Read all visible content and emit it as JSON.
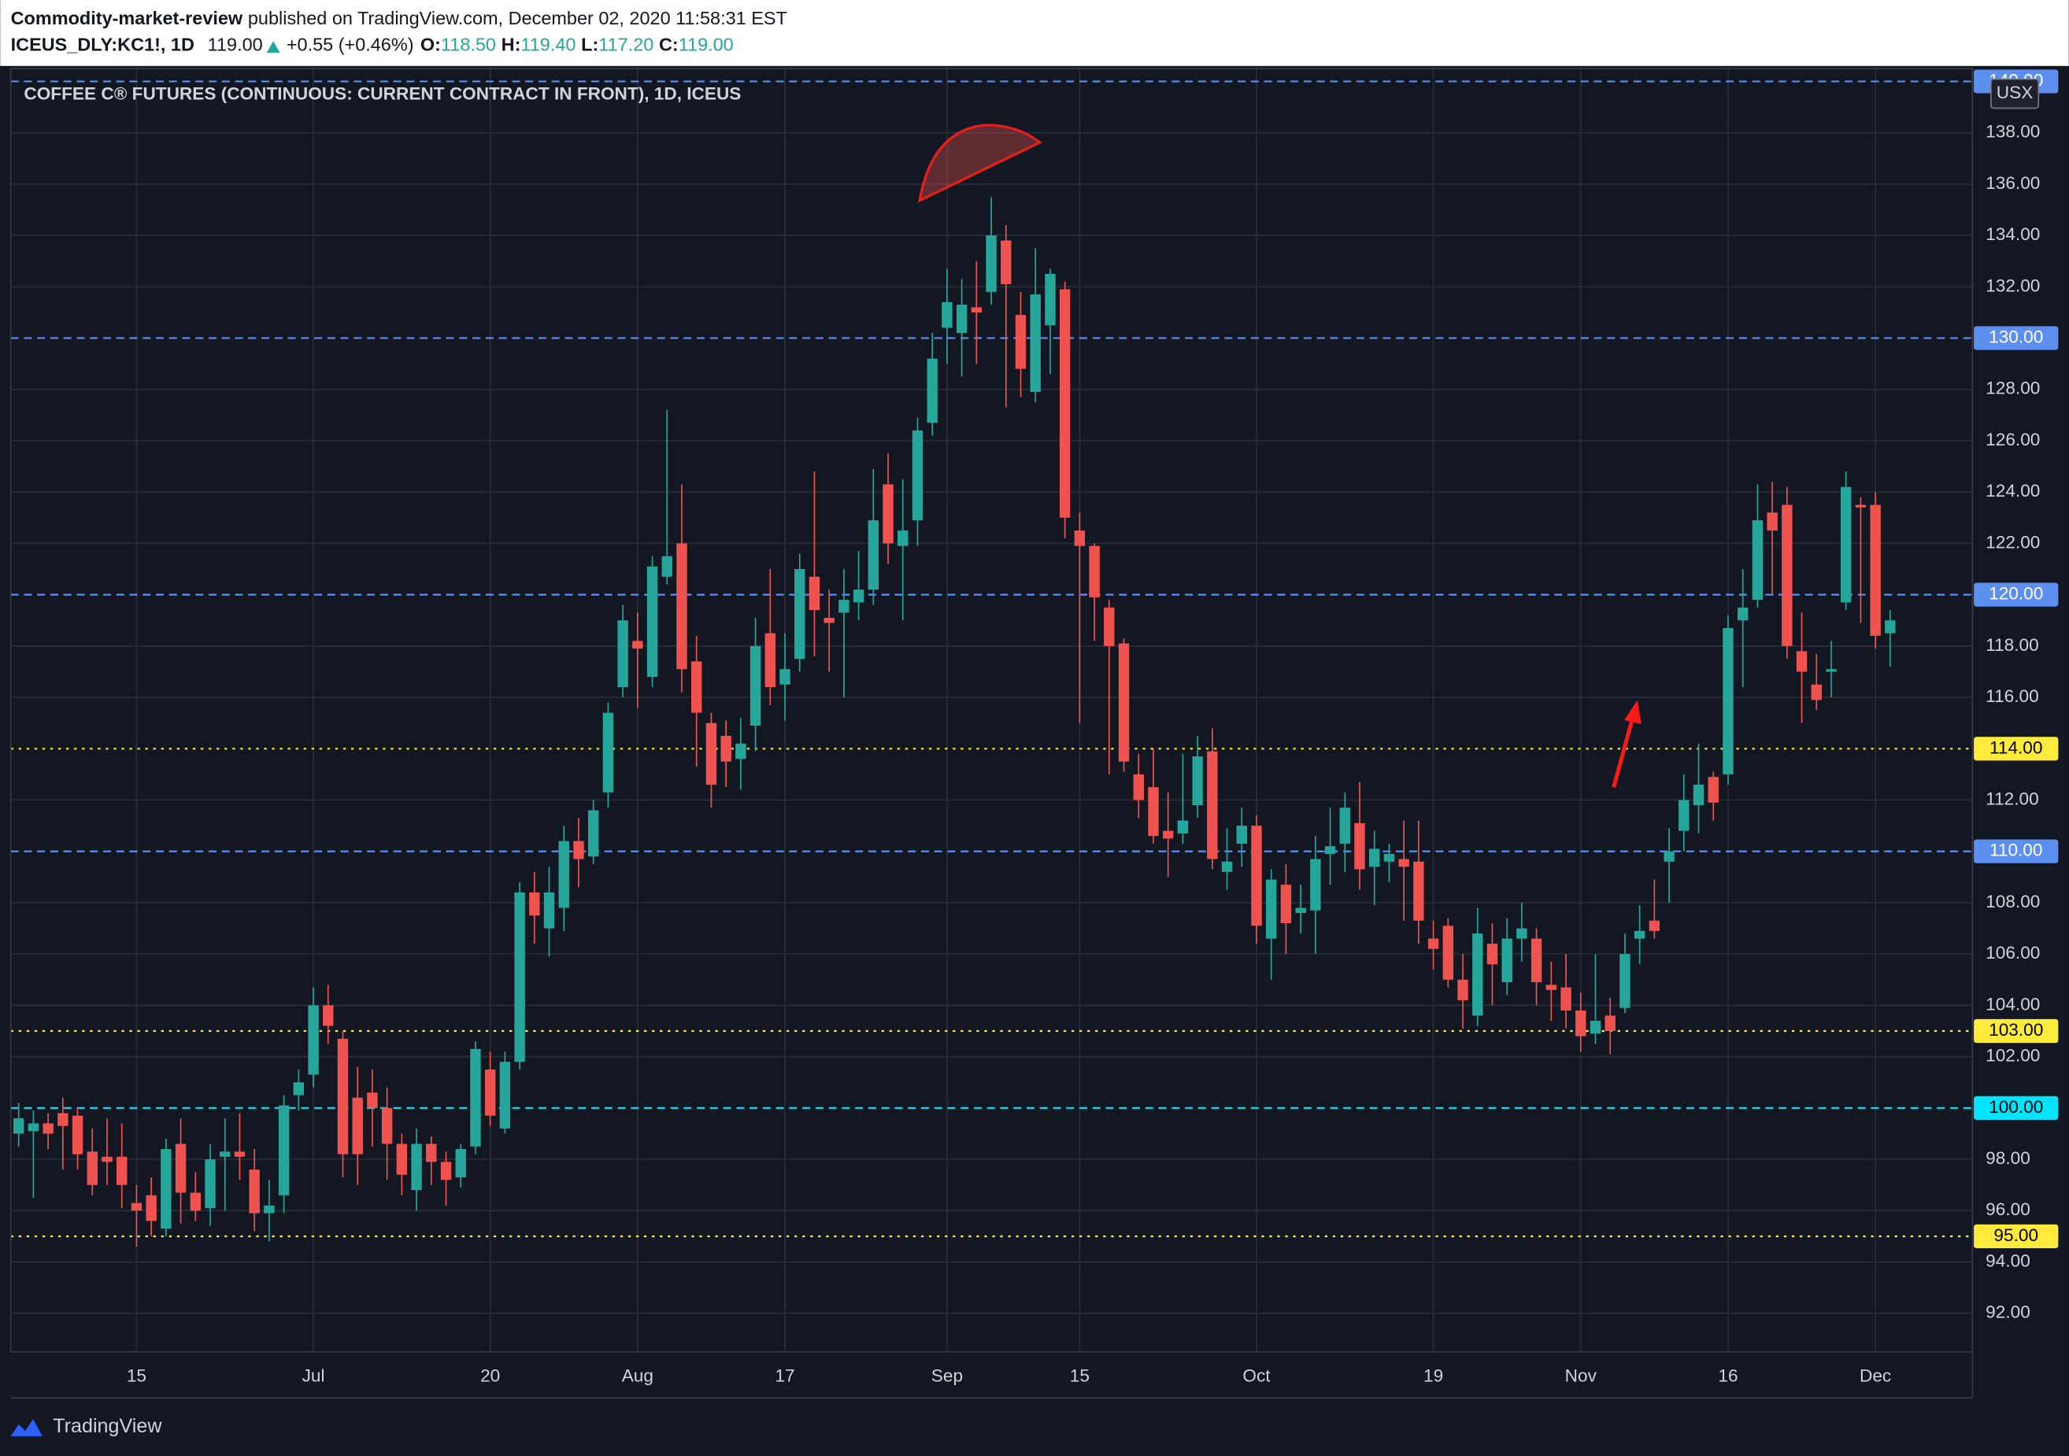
{
  "header": {
    "publisher": "Commodity-market-review",
    "published": "published on TradingView.com, December 02, 2020 11:58:31 EST",
    "symbol": "ICEUS_DLY:KC1!, 1D",
    "last": "119.00",
    "change": "+0.55 (+0.46%)",
    "o_label": "O:",
    "o": "118.50",
    "h_label": "H:",
    "h": "119.40",
    "l_label": "L:",
    "l": "117.20",
    "c_label": "C:",
    "c": "119.00"
  },
  "chart_data": {
    "type": "candlestick",
    "title": "COFFEE C® FUTURES (CONTINUOUS: CURRENT CONTRACT IN FRONT), 1D, ICEUS",
    "currency": "USX",
    "categories": [
      null,
      null,
      null,
      null,
      null,
      null,
      null,
      null,
      "15",
      null,
      null,
      null,
      null,
      null,
      null,
      null,
      null,
      null,
      null,
      null,
      "Jul",
      null,
      null,
      null,
      null,
      null,
      null,
      null,
      null,
      null,
      null,
      null,
      "20",
      null,
      null,
      null,
      null,
      null,
      null,
      null,
      null,
      null,
      "Aug",
      null,
      null,
      null,
      null,
      null,
      null,
      null,
      null,
      null,
      "17",
      null,
      null,
      null,
      null,
      null,
      null,
      null,
      null,
      null,
      null,
      "Sep",
      null,
      null,
      null,
      null,
      null,
      null,
      null,
      null,
      "15",
      null,
      null,
      null,
      null,
      null,
      null,
      null,
      null,
      null,
      null,
      null,
      "Oct",
      null,
      null,
      null,
      null,
      null,
      null,
      null,
      null,
      null,
      null,
      null,
      "19",
      null,
      null,
      null,
      null,
      null,
      null,
      null,
      null,
      null,
      "Nov",
      null,
      null,
      null,
      null,
      null,
      null,
      null,
      null,
      null,
      "16",
      null,
      null,
      null,
      null,
      null,
      null,
      null,
      null,
      null,
      "Dec",
      null
    ],
    "open": [
      99.0,
      99.1,
      99.4,
      99.8,
      99.7,
      98.3,
      98.1,
      98.1,
      96.3,
      96.6,
      95.3,
      98.6,
      96.7,
      96.1,
      98.1,
      98.3,
      97.6,
      95.9,
      96.6,
      100.5,
      101.3,
      104.0,
      102.7,
      100.4,
      100.6,
      100.0,
      98.6,
      96.8,
      98.6,
      97.9,
      97.3,
      98.5,
      101.5,
      99.2,
      101.8,
      108.4,
      107.0,
      107.8,
      110.4,
      109.8,
      112.3,
      116.4,
      118.2,
      116.8,
      120.7,
      122.0,
      117.4,
      115.0,
      114.5,
      113.6,
      114.9,
      118.5,
      116.5,
      117.5,
      120.7,
      119.1,
      119.3,
      119.7,
      120.2,
      124.3,
      121.9,
      122.9,
      126.7,
      130.4,
      130.2,
      131.2,
      131.8,
      133.8,
      130.9,
      127.9,
      130.5,
      131.9,
      122.5,
      121.9,
      119.5,
      118.1,
      113.0,
      112.5,
      110.8,
      110.7,
      111.8,
      113.9,
      109.2,
      110.3,
      111.0,
      106.6,
      108.7,
      107.6,
      107.7,
      109.9,
      110.3,
      111.1,
      109.4,
      109.6,
      109.7,
      109.6,
      106.6,
      107.1,
      105.0,
      103.6,
      106.4,
      104.9,
      106.6,
      106.6,
      104.8,
      104.7,
      103.8,
      102.9,
      103.6,
      103.9,
      106.6,
      107.3,
      109.6,
      110.8,
      111.8,
      112.9,
      113.0,
      119.0,
      119.8,
      123.2,
      123.5,
      117.8,
      116.5,
      117.0,
      119.7,
      123.5,
      123.5,
      118.5
    ],
    "high": [
      100.2,
      99.9,
      99.8,
      100.4,
      100.0,
      99.2,
      99.6,
      99.4,
      97.0,
      97.3,
      98.8,
      99.6,
      97.5,
      98.6,
      99.6,
      99.8,
      98.4,
      97.2,
      100.5,
      101.5,
      104.7,
      104.8,
      103.0,
      101.6,
      101.5,
      100.8,
      99.0,
      99.2,
      98.9,
      98.3,
      98.6,
      102.6,
      102.2,
      102.2,
      108.8,
      109.2,
      109.4,
      111.0,
      111.3,
      112.0,
      115.8,
      119.6,
      119.3,
      121.5,
      127.2,
      124.3,
      118.4,
      115.4,
      115.1,
      115.2,
      119.1,
      121.0,
      118.5,
      121.6,
      124.8,
      120.2,
      121.0,
      121.7,
      124.9,
      125.5,
      124.5,
      126.9,
      130.2,
      132.7,
      132.3,
      133.0,
      135.5,
      134.4,
      131.8,
      133.5,
      132.7,
      132.2,
      123.2,
      122.0,
      119.8,
      118.3,
      113.8,
      114.0,
      112.3,
      113.8,
      114.5,
      114.8,
      110.9,
      111.7,
      111.4,
      109.3,
      109.5,
      108.7,
      110.6,
      111.7,
      112.3,
      112.7,
      110.8,
      110.3,
      111.2,
      111.2,
      107.3,
      107.4,
      106.0,
      107.8,
      107.2,
      107.4,
      108.0,
      107.0,
      105.7,
      106.0,
      104.5,
      106.0,
      104.3,
      106.8,
      107.9,
      108.9,
      110.9,
      113.0,
      114.2,
      113.1,
      119.2,
      121.0,
      124.3,
      124.4,
      124.2,
      119.3,
      117.7,
      118.2,
      124.8,
      123.8,
      124.0,
      119.4
    ],
    "low": [
      98.5,
      96.5,
      98.4,
      97.6,
      97.6,
      96.6,
      97.0,
      96.1,
      94.6,
      95.0,
      95.0,
      95.5,
      95.6,
      95.4,
      96.0,
      97.2,
      95.2,
      94.8,
      95.9,
      99.9,
      100.8,
      102.5,
      97.3,
      97.0,
      98.5,
      97.2,
      96.6,
      96.0,
      97.0,
      96.2,
      96.9,
      98.2,
      99.3,
      99.0,
      101.5,
      106.4,
      105.9,
      106.9,
      108.6,
      109.5,
      111.7,
      116.0,
      115.6,
      116.4,
      120.4,
      116.2,
      113.3,
      111.7,
      112.5,
      112.4,
      113.9,
      115.7,
      115.1,
      117.0,
      117.6,
      117.0,
      116.0,
      119.0,
      119.6,
      121.2,
      119.0,
      121.9,
      126.2,
      129.0,
      128.5,
      129.0,
      131.3,
      127.3,
      127.7,
      127.5,
      128.6,
      122.2,
      115.0,
      118.2,
      113.0,
      113.1,
      111.3,
      110.3,
      109.0,
      110.3,
      111.3,
      109.3,
      108.5,
      109.4,
      106.4,
      105.0,
      106.0,
      106.8,
      106.0,
      108.7,
      109.2,
      108.5,
      107.9,
      108.8,
      107.3,
      106.4,
      105.4,
      104.7,
      103.1,
      103.2,
      104.0,
      104.4,
      105.7,
      104.0,
      103.4,
      103.1,
      102.2,
      102.5,
      102.1,
      103.7,
      105.6,
      106.6,
      108.0,
      110.0,
      110.7,
      111.2,
      112.6,
      116.4,
      119.5,
      120.0,
      117.5,
      115.0,
      115.5,
      116.0,
      119.4,
      118.9,
      117.9,
      117.2
    ],
    "close": [
      99.6,
      99.4,
      99.0,
      99.3,
      98.2,
      97.0,
      97.9,
      97.0,
      96.0,
      95.6,
      98.4,
      96.7,
      96.0,
      98.0,
      98.3,
      98.1,
      95.9,
      96.2,
      100.1,
      101.0,
      104.0,
      103.2,
      98.2,
      98.2,
      100.0,
      98.6,
      97.4,
      98.6,
      97.9,
      97.2,
      98.4,
      102.3,
      99.7,
      101.8,
      108.4,
      107.5,
      108.4,
      110.4,
      109.7,
      111.6,
      115.4,
      119.0,
      117.9,
      121.1,
      121.5,
      117.1,
      115.4,
      112.6,
      113.5,
      114.2,
      118.0,
      116.4,
      117.1,
      121.0,
      119.4,
      118.9,
      119.8,
      120.2,
      122.9,
      122.0,
      122.5,
      126.4,
      129.2,
      131.4,
      131.3,
      131.0,
      134.0,
      132.1,
      128.8,
      131.7,
      132.5,
      123.0,
      121.9,
      119.9,
      118.0,
      113.5,
      112.0,
      110.6,
      110.5,
      111.2,
      113.7,
      109.7,
      109.6,
      111.0,
      107.1,
      108.9,
      107.2,
      107.8,
      109.7,
      110.2,
      111.7,
      109.3,
      110.1,
      109.9,
      109.4,
      107.3,
      106.2,
      105.0,
      104.2,
      106.8,
      105.6,
      106.6,
      107.0,
      104.9,
      104.6,
      103.8,
      102.8,
      103.4,
      103.0,
      106.0,
      106.9,
      106.9,
      110.0,
      112.0,
      112.6,
      111.9,
      118.7,
      119.5,
      122.9,
      122.5,
      118.0,
      117.0,
      115.9,
      117.1,
      124.2,
      123.4,
      118.4,
      119.0
    ],
    "up_color": "#26a69a",
    "down_color": "#ef5350",
    "ylim": [
      90.5,
      140.5
    ],
    "yticks": [
      {
        "value": 92,
        "label": "92.00"
      },
      {
        "value": 94,
        "label": "94.00"
      },
      {
        "value": 96,
        "label": "96.00"
      },
      {
        "value": 98,
        "label": "98.00"
      },
      {
        "value": 102,
        "label": "102.00"
      },
      {
        "value": 104,
        "label": "104.00"
      },
      {
        "value": 106,
        "label": "106.00"
      },
      {
        "value": 108,
        "label": "108.00"
      },
      {
        "value": 112,
        "label": "112.00"
      },
      {
        "value": 116,
        "label": "116.00"
      },
      {
        "value": 118,
        "label": "118.00"
      },
      {
        "value": 122,
        "label": "122.00"
      },
      {
        "value": 124,
        "label": "124.00"
      },
      {
        "value": 126,
        "label": "126.00"
      },
      {
        "value": 128,
        "label": "128.00"
      },
      {
        "value": 132,
        "label": "132.00"
      },
      {
        "value": 134,
        "label": "134.00"
      },
      {
        "value": 136,
        "label": "136.00"
      },
      {
        "value": 138,
        "label": "138.00"
      }
    ],
    "levels": [
      {
        "value": 140,
        "label": "140.00",
        "style": "dashed",
        "color": "#5d8ff0",
        "text_color": "#ffffff"
      },
      {
        "value": 130,
        "label": "130.00",
        "style": "dashed",
        "color": "#5d8ff0",
        "text_color": "#ffffff"
      },
      {
        "value": 120,
        "label": "120.00",
        "style": "dashed",
        "color": "#5d8ff0",
        "text_color": "#ffffff"
      },
      {
        "value": 114,
        "label": "114.00",
        "style": "dotted",
        "color": "#ffeb3b",
        "text_color": "#000000"
      },
      {
        "value": 110,
        "label": "110.00",
        "style": "dashed",
        "color": "#5d8ff0",
        "text_color": "#ffffff"
      },
      {
        "value": 103,
        "label": "103.00",
        "style": "dotted",
        "color": "#ffeb3b",
        "text_color": "#000000"
      },
      {
        "value": 100,
        "label": "100.00",
        "style": "dashed",
        "color": "#00e5ff",
        "text_color": "#000000"
      },
      {
        "value": 95,
        "label": "95.00",
        "style": "dotted",
        "color": "#ffeb3b",
        "text_color": "#000000"
      }
    ],
    "grid": true
  },
  "footer": {
    "brand": "TradingView"
  }
}
